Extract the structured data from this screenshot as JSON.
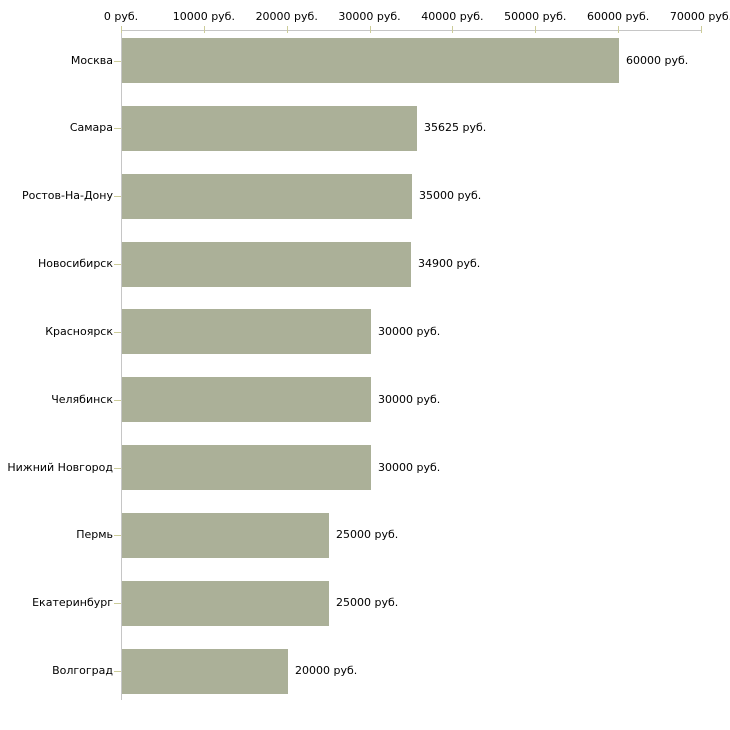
{
  "chart_data": {
    "type": "bar",
    "orientation": "horizontal",
    "title": "",
    "categories": [
      "Москва",
      "Самара",
      "Ростов-На-Дону",
      "Новосибирск",
      "Красноярск",
      "Челябинск",
      "Нижний Новгород",
      "Пермь",
      "Екатеринбург",
      "Волгоград"
    ],
    "values": [
      60000,
      35625,
      35000,
      34900,
      30000,
      30000,
      30000,
      25000,
      25000,
      20000
    ],
    "value_labels": [
      "60000 руб.",
      "35625 руб.",
      "35000 руб.",
      "34900 руб.",
      "30000 руб.",
      "30000 руб.",
      "30000 руб.",
      "25000 руб.",
      "25000 руб.",
      "20000 руб."
    ],
    "x_tick_labels": [
      "0 руб.",
      "10000 руб.",
      "20000 руб.",
      "30000 руб.",
      "40000 руб.",
      "50000 руб.",
      "60000 руб.",
      "70000 руб."
    ],
    "x_tick_values": [
      0,
      10000,
      20000,
      30000,
      40000,
      50000,
      60000,
      70000
    ],
    "xlim": [
      0,
      70000
    ],
    "xlabel": "",
    "ylabel": "",
    "grid": false,
    "legend": "none",
    "axis_position": "top",
    "colors": {
      "bar": "#abb098",
      "axis_line": "#c6c6c6",
      "tick_mark": "#cccc99",
      "text": "#000000",
      "background": "#ffffff"
    }
  }
}
